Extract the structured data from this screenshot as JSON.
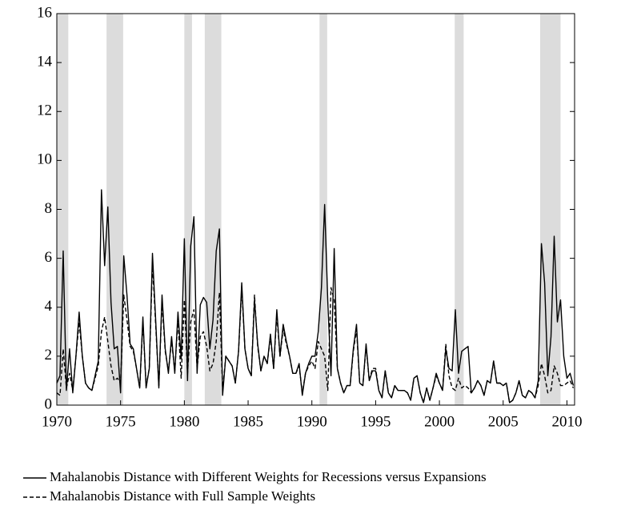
{
  "chart_data": {
    "type": "line",
    "x": [
      1970,
      1970.25,
      1970.5,
      1970.75,
      1971,
      1971.25,
      1971.5,
      1971.75,
      1972,
      1972.25,
      1972.5,
      1972.75,
      1973,
      1973.25,
      1973.5,
      1973.75,
      1974,
      1974.25,
      1974.5,
      1974.75,
      1975,
      1975.25,
      1975.5,
      1975.75,
      1976,
      1976.25,
      1976.5,
      1976.75,
      1977,
      1977.25,
      1977.5,
      1977.75,
      1978,
      1978.25,
      1978.5,
      1978.75,
      1979,
      1979.25,
      1979.5,
      1979.75,
      1980,
      1980.25,
      1980.5,
      1980.75,
      1981,
      1981.25,
      1981.5,
      1981.75,
      1982,
      1982.25,
      1982.5,
      1982.75,
      1983,
      1983.25,
      1983.5,
      1983.75,
      1984,
      1984.25,
      1984.5,
      1984.75,
      1985,
      1985.25,
      1985.5,
      1985.75,
      1986,
      1986.25,
      1986.5,
      1986.75,
      1987,
      1987.25,
      1987.5,
      1987.75,
      1988,
      1988.25,
      1988.5,
      1988.75,
      1989,
      1989.25,
      1989.5,
      1989.75,
      1990,
      1990.25,
      1990.5,
      1990.75,
      1991,
      1991.25,
      1991.5,
      1991.75,
      1992,
      1992.25,
      1992.5,
      1992.75,
      1993,
      1993.25,
      1993.5,
      1993.75,
      1994,
      1994.25,
      1994.5,
      1994.75,
      1995,
      1995.25,
      1995.5,
      1995.75,
      1996,
      1996.25,
      1996.5,
      1996.75,
      1997,
      1997.25,
      1997.5,
      1997.75,
      1998,
      1998.25,
      1998.5,
      1998.75,
      1999,
      1999.25,
      1999.5,
      1999.75,
      2000,
      2000.25,
      2000.5,
      2000.75,
      2001,
      2001.25,
      2001.5,
      2001.75,
      2002,
      2002.25,
      2002.5,
      2002.75,
      2003,
      2003.25,
      2003.5,
      2003.75,
      2004,
      2004.25,
      2004.5,
      2004.75,
      2005,
      2005.25,
      2005.5,
      2005.75,
      2006,
      2006.25,
      2006.5,
      2006.75,
      2007,
      2007.25,
      2007.5,
      2007.75,
      2008,
      2008.25,
      2008.5,
      2008.75,
      2009,
      2009.25,
      2009.5,
      2009.75,
      2010,
      2010.25,
      2010.5
    ],
    "series": [
      {
        "name": "Mahalanobis Distance with Different Weights for Recessions versus Expansions",
        "color": "#000000",
        "line_style": "solid",
        "values": [
          0.9,
          1.2,
          6.3,
          0.6,
          2.3,
          0.5,
          2.0,
          3.8,
          2.0,
          0.9,
          0.7,
          0.6,
          1.2,
          1.8,
          8.8,
          5.7,
          8.1,
          4.2,
          2.3,
          2.4,
          0.5,
          6.1,
          4.5,
          2.5,
          2.3,
          1.5,
          0.7,
          3.6,
          0.7,
          1.5,
          6.2,
          3.5,
          0.7,
          4.5,
          2.3,
          1.3,
          2.8,
          1.3,
          3.8,
          1.9,
          6.8,
          1.0,
          6.5,
          7.7,
          1.3,
          4.1,
          4.4,
          4.2,
          2.3,
          3.5,
          6.3,
          7.2,
          0.4,
          2.0,
          1.8,
          1.6,
          0.9,
          2.2,
          5.0,
          2.3,
          1.5,
          1.2,
          4.3,
          2.5,
          1.4,
          2.0,
          1.7,
          2.9,
          1.5,
          3.9,
          2.0,
          3.3,
          2.6,
          2.0,
          1.3,
          1.3,
          1.7,
          0.4,
          1.3,
          1.7,
          2.0,
          2.0,
          3.0,
          4.8,
          8.2,
          4.2,
          1.2,
          6.4,
          1.5,
          0.9,
          0.5,
          0.8,
          0.8,
          2.3,
          3.3,
          0.9,
          0.8,
          2.5,
          1.0,
          1.4,
          1.4,
          0.6,
          0.3,
          1.4,
          0.5,
          0.3,
          0.8,
          0.6,
          0.6,
          0.6,
          0.5,
          0.2,
          1.1,
          1.2,
          0.5,
          0.1,
          0.7,
          0.2,
          0.7,
          1.3,
          0.9,
          0.6,
          2.3,
          1.5,
          1.4,
          3.9,
          1.3,
          2.2,
          2.3,
          2.4,
          0.5,
          0.7,
          1.0,
          0.8,
          0.4,
          1.0,
          0.9,
          1.8,
          0.9,
          0.9,
          0.8,
          0.9,
          0.1,
          0.2,
          0.5,
          1.0,
          0.4,
          0.3,
          0.6,
          0.5,
          0.3,
          1.0,
          6.6,
          5.0,
          1.2,
          2.8,
          6.9,
          3.4,
          4.3,
          2.0,
          1.1,
          1.3,
          0.8
        ]
      },
      {
        "name": "Mahalanobis Distance with Full Sample Weights",
        "color": "#000000",
        "line_style": "dashed",
        "values": [
          0.5,
          0.4,
          2.3,
          0.7,
          1.3,
          0.6,
          2.0,
          3.4,
          2.0,
          0.9,
          0.7,
          0.6,
          1.1,
          1.6,
          3.0,
          3.6,
          2.6,
          1.6,
          1.0,
          1.1,
          0.9,
          4.5,
          3.5,
          2.4,
          2.2,
          1.5,
          0.7,
          3.4,
          0.8,
          1.5,
          5.8,
          3.3,
          0.8,
          4.2,
          2.2,
          1.4,
          2.6,
          1.4,
          3.5,
          1.1,
          4.3,
          1.3,
          3.4,
          3.9,
          1.5,
          2.8,
          3.0,
          2.4,
          1.4,
          1.7,
          2.6,
          4.6,
          0.6,
          2.0,
          1.8,
          1.6,
          0.9,
          2.2,
          4.8,
          2.3,
          1.5,
          1.2,
          4.5,
          2.4,
          1.4,
          2.0,
          1.7,
          2.8,
          1.5,
          3.7,
          2.0,
          3.1,
          2.5,
          2.0,
          1.3,
          1.3,
          1.6,
          0.5,
          1.3,
          1.6,
          1.8,
          1.5,
          2.6,
          2.3,
          2.0,
          0.6,
          4.8,
          4.3,
          1.5,
          0.9,
          0.5,
          0.8,
          0.8,
          2.2,
          3.1,
          0.9,
          0.8,
          2.4,
          1.0,
          1.5,
          1.5,
          0.6,
          0.3,
          1.4,
          0.5,
          0.3,
          0.8,
          0.6,
          0.6,
          0.6,
          0.5,
          0.2,
          1.1,
          1.2,
          0.5,
          0.1,
          0.7,
          0.2,
          0.7,
          1.2,
          0.9,
          0.6,
          2.5,
          1.2,
          0.7,
          0.6,
          1.1,
          0.7,
          0.8,
          0.7,
          0.5,
          0.7,
          1.0,
          0.8,
          0.4,
          1.0,
          0.9,
          1.8,
          0.9,
          0.9,
          0.8,
          0.9,
          0.1,
          0.2,
          0.5,
          1.0,
          0.4,
          0.3,
          0.6,
          0.5,
          0.3,
          0.8,
          1.7,
          1.2,
          0.5,
          0.6,
          1.6,
          1.3,
          0.8,
          0.8,
          0.9,
          1.0,
          0.7
        ]
      }
    ],
    "shaded_regions": [
      [
        1970.0,
        1970.9
      ],
      [
        1973.9,
        1975.2
      ],
      [
        1980.0,
        1980.6
      ],
      [
        1981.6,
        1982.9
      ],
      [
        1990.6,
        1991.2
      ],
      [
        2001.2,
        2001.9
      ],
      [
        2007.9,
        2009.5
      ]
    ],
    "shade_color": "#dcdcdc",
    "xlim": [
      1970,
      2010.6
    ],
    "xticks": [
      1970,
      1975,
      1980,
      1985,
      1990,
      1995,
      2000,
      2005,
      2010
    ],
    "ylim": [
      0,
      16
    ],
    "yticks": [
      0,
      2,
      4,
      6,
      8,
      10,
      12,
      14,
      16
    ],
    "grid": false,
    "legend": "bottom"
  }
}
